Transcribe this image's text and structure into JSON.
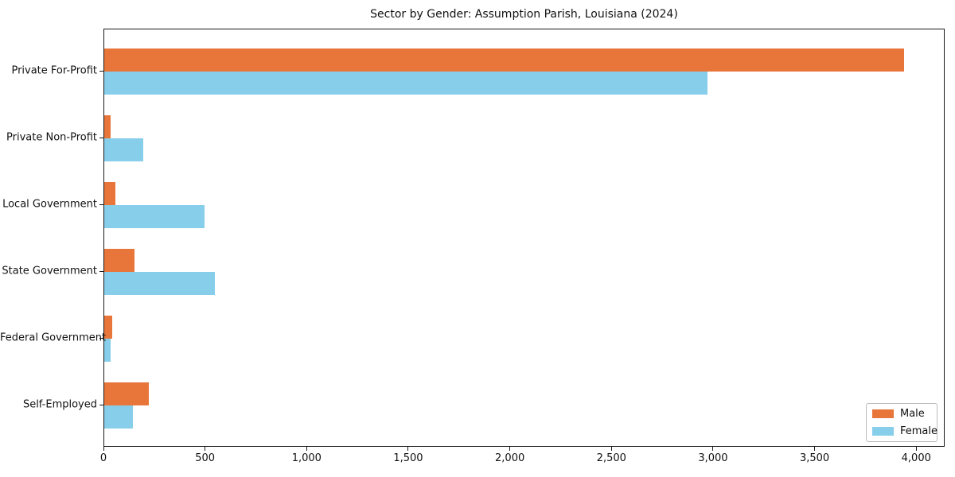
{
  "chart_data": {
    "type": "bar",
    "orientation": "horizontal",
    "title": "Sector by Gender: Assumption Parish, Louisiana (2024)",
    "categories": [
      "Private For-Profit",
      "Private Non-Profit",
      "Local Government",
      "State Government",
      "Federal Government",
      "Self-Employed"
    ],
    "series": [
      {
        "name": "Male",
        "color": "#e8763b",
        "values": [
          3935,
          30,
          55,
          150,
          40,
          220
        ]
      },
      {
        "name": "Female",
        "color": "#87ceeb",
        "values": [
          2970,
          190,
          495,
          545,
          30,
          140
        ]
      }
    ],
    "xlim": [
      0,
      4140
    ],
    "x_ticks": [
      0,
      500,
      1000,
      1500,
      2000,
      2500,
      3000,
      3500,
      4000
    ],
    "x_tick_labels": [
      "0",
      "500",
      "1,000",
      "1,500",
      "2,000",
      "2,500",
      "3,000",
      "3,500",
      "4,000"
    ],
    "xlabel": "",
    "ylabel": "",
    "grid": false,
    "legend_position": "lower right",
    "spine_color": "#1a1a1a",
    "background_color": "#ffffff"
  }
}
